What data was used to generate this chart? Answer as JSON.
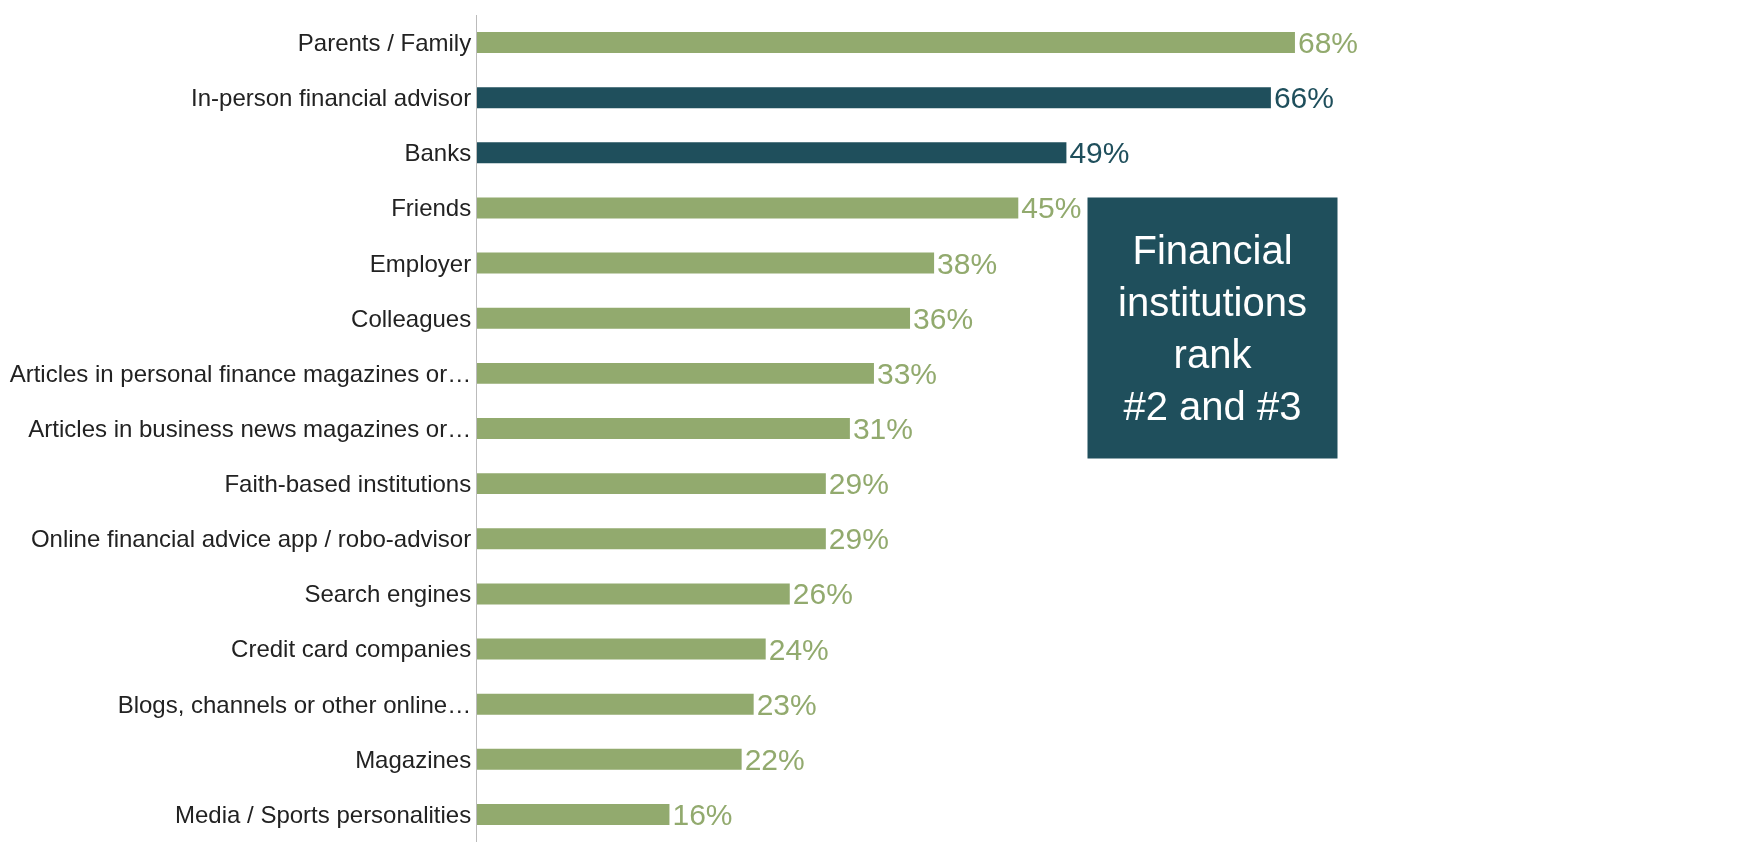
{
  "chart_data": {
    "type": "bar",
    "orientation": "horizontal",
    "categories": [
      "Parents / Family",
      "In-person financial advisor",
      "Banks",
      "Friends",
      "Employer",
      "Colleagues",
      "Articles in personal finance magazines or…",
      "Articles in business news magazines or…",
      "Faith-based institutions",
      "Online financial advice app / robo-advisor",
      "Search engines",
      "Credit card companies",
      "Blogs, channels or other online…",
      "Magazines",
      "Media / Sports personalities"
    ],
    "values": [
      68,
      66,
      49,
      45,
      38,
      36,
      33,
      31,
      29,
      29,
      26,
      24,
      23,
      22,
      16
    ],
    "value_labels": [
      "68%",
      "66%",
      "49%",
      "45%",
      "38%",
      "36%",
      "33%",
      "31%",
      "29%",
      "29%",
      "26%",
      "24%",
      "23%",
      "22%",
      "16%"
    ],
    "colors": [
      "#92aa6e",
      "#1f4f5c",
      "#1f4f5c",
      "#92aa6e",
      "#92aa6e",
      "#92aa6e",
      "#92aa6e",
      "#92aa6e",
      "#92aa6e",
      "#92aa6e",
      "#92aa6e",
      "#92aa6e",
      "#92aa6e",
      "#92aa6e",
      "#92aa6e"
    ],
    "annotations": [
      "Financial\ninstitutions\nrank\n#2 and #3"
    ]
  }
}
